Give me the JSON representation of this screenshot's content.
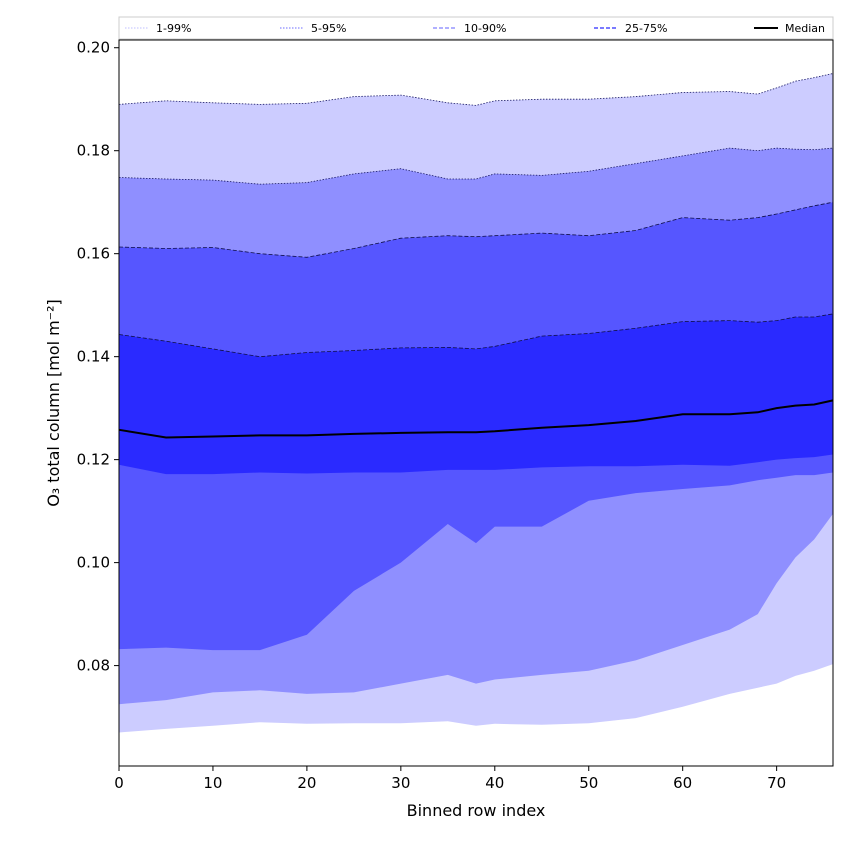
{
  "chart_data": {
    "type": "area",
    "xlabel": "Binned row index",
    "ylabel": "O₃ total column [mol m⁻²]",
    "xlim": [
      0,
      76
    ],
    "ylim": [
      0.0605,
      0.2015
    ],
    "grid": false,
    "legend_position": "top",
    "x_ticks": [
      0,
      10,
      20,
      30,
      40,
      50,
      60,
      70
    ],
    "y_ticks": [
      0.08,
      0.1,
      0.12,
      0.14,
      0.16,
      0.18,
      0.2
    ],
    "x_tick_labels": [
      "0",
      "10",
      "20",
      "30",
      "40",
      "50",
      "60",
      "70"
    ],
    "y_tick_labels": [
      "0.08",
      "0.10",
      "0.12",
      "0.14",
      "0.16",
      "0.18",
      "0.20"
    ],
    "legend": [
      {
        "label": "1-99%",
        "color": "#ccccff",
        "line": "dotted"
      },
      {
        "label": "5-95%",
        "color": "#8a8aff",
        "line": "dotted"
      },
      {
        "label": "10-90%",
        "color": "#8080ff",
        "line": "dashed"
      },
      {
        "label": "25-75%",
        "color": "#2a2aff",
        "line": "dashed"
      },
      {
        "label": "Median",
        "color": "#000000",
        "line": "solid"
      }
    ],
    "x": [
      0,
      5,
      10,
      15,
      20,
      25,
      30,
      35,
      38,
      40,
      45,
      50,
      55,
      60,
      65,
      68,
      70,
      72,
      74,
      76
    ],
    "bands": [
      {
        "name": "1-99%",
        "color": "#ccccff",
        "lower": [
          0.067,
          0.0677,
          0.0683,
          0.069,
          0.0687,
          0.0688,
          0.0688,
          0.0692,
          0.0683,
          0.0687,
          0.0685,
          0.0688,
          0.0698,
          0.072,
          0.0745,
          0.0757,
          0.0765,
          0.078,
          0.079,
          0.0803
        ],
        "upper": [
          0.189,
          0.1897,
          0.1893,
          0.189,
          0.1892,
          0.1905,
          0.1908,
          0.1893,
          0.1888,
          0.1897,
          0.19,
          0.19,
          0.1905,
          0.1913,
          0.1915,
          0.191,
          0.1922,
          0.1935,
          0.1942,
          0.195
        ]
      },
      {
        "name": "5-95%",
        "color": "#8f8fff",
        "lower": [
          0.0725,
          0.0733,
          0.0748,
          0.0752,
          0.0745,
          0.0748,
          0.0765,
          0.0782,
          0.0765,
          0.0773,
          0.0782,
          0.079,
          0.081,
          0.084,
          0.087,
          0.09,
          0.096,
          0.101,
          0.1045,
          0.1095
        ],
        "upper": [
          0.1748,
          0.1745,
          0.1743,
          0.1735,
          0.1738,
          0.1755,
          0.1765,
          0.1745,
          0.1745,
          0.1755,
          0.1752,
          0.176,
          0.1775,
          0.179,
          0.1805,
          0.18,
          0.1805,
          0.1803,
          0.1802,
          0.1805
        ]
      },
      {
        "name": "10-90%",
        "color": "#5656ff",
        "lower": [
          0.0832,
          0.0835,
          0.083,
          0.083,
          0.086,
          0.0945,
          0.1,
          0.1075,
          0.1038,
          0.107,
          0.107,
          0.112,
          0.1135,
          0.1143,
          0.115,
          0.116,
          0.1165,
          0.117,
          0.117,
          0.1175
        ],
        "upper": [
          0.1613,
          0.161,
          0.1612,
          0.16,
          0.1593,
          0.161,
          0.163,
          0.1635,
          0.1633,
          0.1635,
          0.164,
          0.1635,
          0.1645,
          0.167,
          0.1665,
          0.167,
          0.1677,
          0.1685,
          0.1693,
          0.17
        ]
      },
      {
        "name": "25-75%",
        "color": "#2a2aff",
        "lower": [
          0.119,
          0.1172,
          0.1172,
          0.1175,
          0.1173,
          0.1175,
          0.1175,
          0.118,
          0.118,
          0.118,
          0.1185,
          0.1187,
          0.1187,
          0.119,
          0.1188,
          0.1195,
          0.12,
          0.1203,
          0.1205,
          0.121
        ],
        "upper": [
          0.1443,
          0.143,
          0.1415,
          0.14,
          0.1408,
          0.1412,
          0.1417,
          0.1418,
          0.1415,
          0.142,
          0.144,
          0.1445,
          0.1455,
          0.1468,
          0.147,
          0.1467,
          0.147,
          0.1477,
          0.1477,
          0.1483
        ]
      }
    ],
    "median": [
      0.1258,
      0.1243,
      0.1245,
      0.1247,
      0.1247,
      0.125,
      0.1252,
      0.1253,
      0.1253,
      0.1255,
      0.1262,
      0.1267,
      0.1275,
      0.1288,
      0.1288,
      0.1292,
      0.13,
      0.1305,
      0.1307,
      0.1315
    ]
  }
}
